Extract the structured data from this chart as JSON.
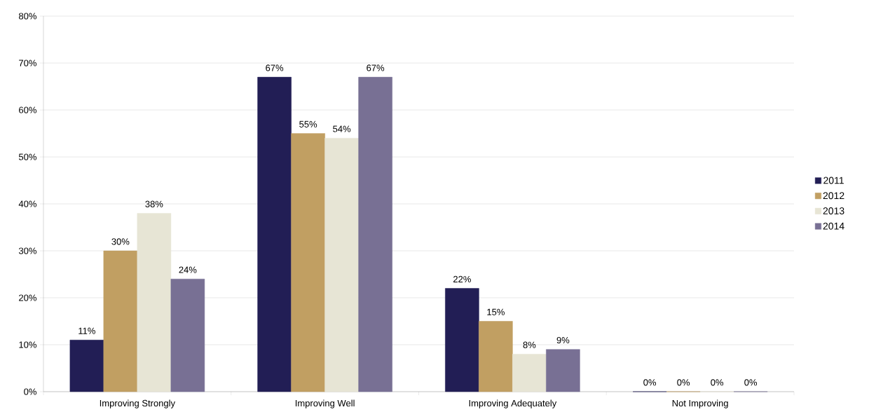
{
  "chart_data": {
    "type": "bar",
    "categories": [
      "Improving Strongly",
      "Improving Well",
      "Improving Adequately",
      "Not Improving"
    ],
    "series": [
      {
        "name": "2011",
        "color": "#221e55",
        "values": [
          11,
          67,
          22,
          0
        ],
        "value_labels": [
          "11%",
          "67%",
          "22%",
          "0%"
        ]
      },
      {
        "name": "2012",
        "color": "#c19f62",
        "values": [
          30,
          55,
          15,
          0
        ],
        "value_labels": [
          "30%",
          "55%",
          "15%",
          "0%"
        ]
      },
      {
        "name": "2013",
        "color": "#e7e5d5",
        "values": [
          38,
          54,
          8,
          0
        ],
        "value_labels": [
          "38%",
          "54%",
          "8%",
          "0%"
        ]
      },
      {
        "name": "2014",
        "color": "#787094",
        "values": [
          24,
          67,
          9,
          0
        ],
        "value_labels": [
          "24%",
          "67%",
          "9%",
          "0%"
        ]
      }
    ],
    "ylim": [
      0,
      80
    ],
    "yticks": [
      {
        "value": 0,
        "label": "0%"
      },
      {
        "value": 10,
        "label": "10%"
      },
      {
        "value": 20,
        "label": "20%"
      },
      {
        "value": 30,
        "label": "30%"
      },
      {
        "value": 40,
        "label": "40%"
      },
      {
        "value": 50,
        "label": "50%"
      },
      {
        "value": 60,
        "label": "60%"
      },
      {
        "value": 70,
        "label": "70%"
      },
      {
        "value": 80,
        "label": "80%"
      }
    ],
    "grid": "y",
    "legend": "right"
  }
}
